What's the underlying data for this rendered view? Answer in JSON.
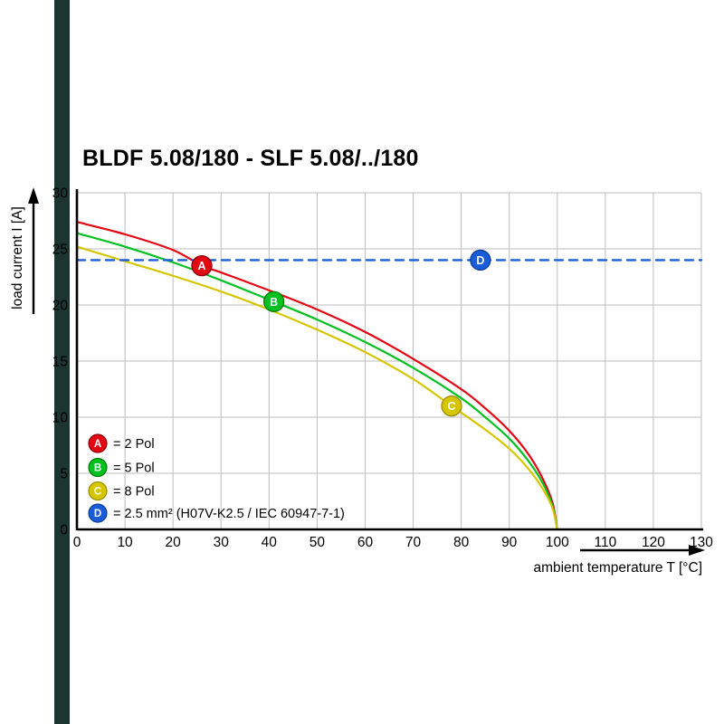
{
  "left_bar_color": "#1d3530",
  "chart_data": {
    "type": "line",
    "title": "BLDF 5.08/180 - SLF 5.08/../180",
    "xlabel": "ambient temperature T [°C]",
    "ylabel": "load current I [A]",
    "xlim": [
      0,
      130
    ],
    "ylim": [
      0,
      30
    ],
    "x_ticks": [
      0,
      10,
      20,
      30,
      40,
      50,
      60,
      70,
      80,
      90,
      100,
      110,
      120,
      130
    ],
    "y_ticks": [
      0,
      5,
      10,
      15,
      20,
      25,
      30
    ],
    "grid": true,
    "grid_color": "#bdbdbd",
    "legend_position": "inside-bottom-left",
    "series": [
      {
        "id": "A",
        "legend_label": "= 2 Pol",
        "color": "#e30613",
        "edge": "#8e0007",
        "line_style": "solid",
        "marker_at": [
          26,
          23.5
        ],
        "points": [
          [
            0,
            27.4
          ],
          [
            10,
            26.3
          ],
          [
            20,
            24.9
          ],
          [
            26,
            23.5
          ],
          [
            30,
            22.9
          ],
          [
            40,
            21.3
          ],
          [
            50,
            19.6
          ],
          [
            60,
            17.6
          ],
          [
            70,
            15.2
          ],
          [
            80,
            12.5
          ],
          [
            85,
            10.8
          ],
          [
            90,
            8.8
          ],
          [
            94,
            6.7
          ],
          [
            97,
            4.5
          ],
          [
            99,
            2.4
          ],
          [
            100,
            0
          ]
        ]
      },
      {
        "id": "B",
        "legend_label": "= 5 Pol",
        "color": "#00c11f",
        "edge": "#007a00",
        "line_style": "solid",
        "marker_at": [
          41,
          20.3
        ],
        "points": [
          [
            0,
            26.4
          ],
          [
            10,
            25.2
          ],
          [
            20,
            23.8
          ],
          [
            30,
            22.2
          ],
          [
            41,
            20.3
          ],
          [
            50,
            18.7
          ],
          [
            60,
            16.7
          ],
          [
            70,
            14.4
          ],
          [
            80,
            11.7
          ],
          [
            85,
            10.0
          ],
          [
            90,
            8.1
          ],
          [
            94,
            6.1
          ],
          [
            97,
            4.1
          ],
          [
            99,
            2.1
          ],
          [
            100,
            0
          ]
        ]
      },
      {
        "id": "C",
        "legend_label": "= 8 Pol",
        "color": "#d6c600",
        "edge": "#9a8e00",
        "line_style": "solid",
        "marker_at": [
          78,
          11
        ],
        "points": [
          [
            0,
            25.2
          ],
          [
            10,
            23.9
          ],
          [
            20,
            22.6
          ],
          [
            30,
            21.2
          ],
          [
            40,
            19.6
          ],
          [
            50,
            17.8
          ],
          [
            60,
            15.8
          ],
          [
            70,
            13.4
          ],
          [
            78,
            11.0
          ],
          [
            85,
            8.9
          ],
          [
            90,
            7.2
          ],
          [
            94,
            5.4
          ],
          [
            97,
            3.6
          ],
          [
            99,
            1.9
          ],
          [
            100,
            0
          ]
        ]
      },
      {
        "id": "D",
        "legend_label": "= 2.5 mm² (H07V-K2.5 / IEC 60947-7-1)",
        "color": "#1a5dd8",
        "edge": "#0d3d96",
        "line_style": "dashed",
        "marker_at": [
          84,
          24
        ],
        "points": [
          [
            0,
            24
          ],
          [
            130,
            24
          ]
        ]
      }
    ]
  }
}
